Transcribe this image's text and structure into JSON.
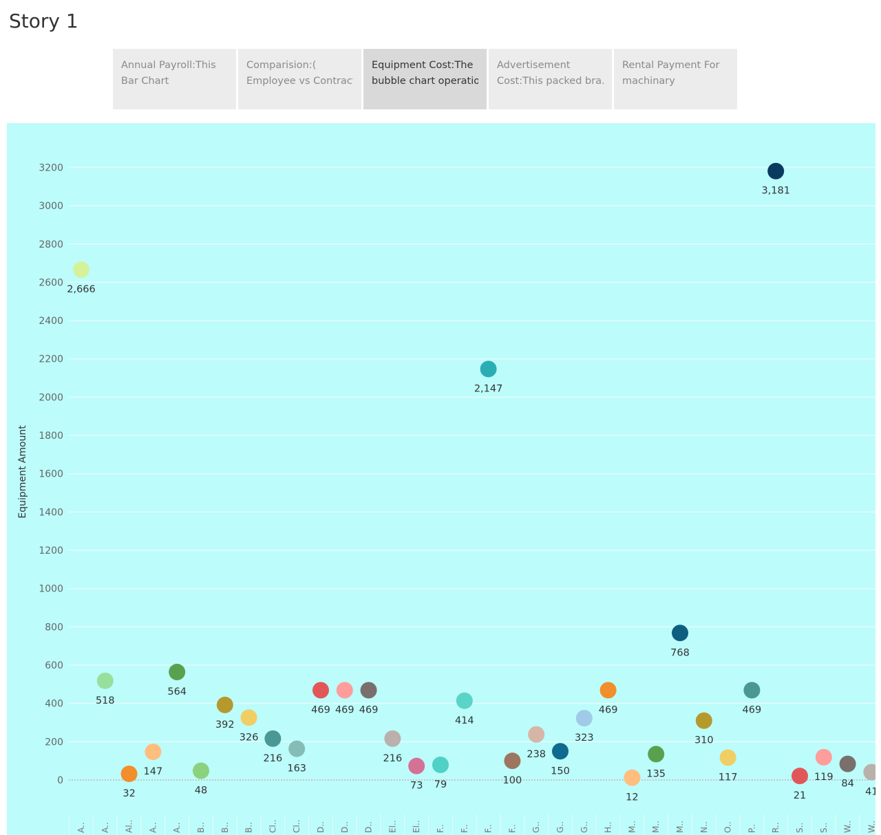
{
  "story": {
    "title": "Story 1"
  },
  "tabs": [
    {
      "line1": "Annual Payroll:This",
      "line2": "Bar Chart",
      "active": false
    },
    {
      "line1": "Comparision:(",
      "line2": "Employee vs Contract..",
      "active": false
    },
    {
      "line1": "Equipment Cost:The",
      "line2": "bubble chart operatio..",
      "active": true
    },
    {
      "line1": "Advertisement",
      "line2": "Cost:This packed bra..",
      "active": false
    },
    {
      "line1": "Rental Payment For",
      "line2": "machinary",
      "active": false
    }
  ],
  "colors": {
    "background": "#bcfcfb",
    "zero_line": "#d98c8c"
  },
  "chart_data": {
    "type": "scatter",
    "title": "",
    "ylabel": "Equipment Amount",
    "xlabel": "",
    "ylim": [
      -100,
      3300
    ],
    "yticks": [
      0,
      200,
      400,
      600,
      800,
      1000,
      1200,
      1400,
      1600,
      1800,
      2000,
      2200,
      2400,
      2600,
      2800,
      3000,
      3200
    ],
    "grid": true,
    "categories": [
      "A..",
      "A..",
      "Al..",
      "A..",
      "A..",
      "B..",
      "B..",
      "B..",
      "Cl..",
      "Cl..",
      "D..",
      "D..",
      "D..",
      "El..",
      "El..",
      "F..",
      "F..",
      "F..",
      "F..",
      "G..",
      "G..",
      "G..",
      "H..",
      "M..",
      "M..",
      "M..",
      "N..",
      "O..",
      "P..",
      "R..",
      "S..",
      "S..",
      "W..",
      "W.."
    ],
    "values": [
      2666,
      518,
      32,
      147,
      564,
      48,
      392,
      326,
      216,
      163,
      469,
      469,
      469,
      216,
      73,
      79,
      414,
      2147,
      100,
      238,
      150,
      323,
      469,
      12,
      135,
      768,
      310,
      117,
      469,
      3181,
      21,
      119,
      84,
      41
    ],
    "labels": [
      "2,666",
      "518",
      "32",
      "147",
      "564",
      "48",
      "392",
      "326",
      "216",
      "163",
      "469",
      "469",
      "469",
      "216",
      "73",
      "79",
      "414",
      "2,147",
      "100",
      "238",
      "150",
      "323",
      "469",
      "12",
      "135",
      "768",
      "310",
      "117",
      "469",
      "3,181",
      "21",
      "119",
      "84",
      "41"
    ],
    "point_colors": [
      "#d4f29a",
      "#98df9e",
      "#f28e2b",
      "#ffbe7d",
      "#59a14f",
      "#8cd17d",
      "#b6992d",
      "#f1ce63",
      "#499894",
      "#86bcb6",
      "#e15759",
      "#ff9d9a",
      "#79706e",
      "#bab0ac",
      "#d37295",
      "#4fd1c5",
      "#5ad4c6",
      "#2aaeb3",
      "#9d7660",
      "#d7b5a6",
      "#0e6a8e",
      "#a0cbe8",
      "#f28e2b",
      "#ffbe7d",
      "#59a14f",
      "#0e5e80",
      "#b6992d",
      "#f1ce63",
      "#499894",
      "#0b3a61",
      "#e15759",
      "#ff9d9a",
      "#79706e",
      "#bab0ac"
    ]
  }
}
